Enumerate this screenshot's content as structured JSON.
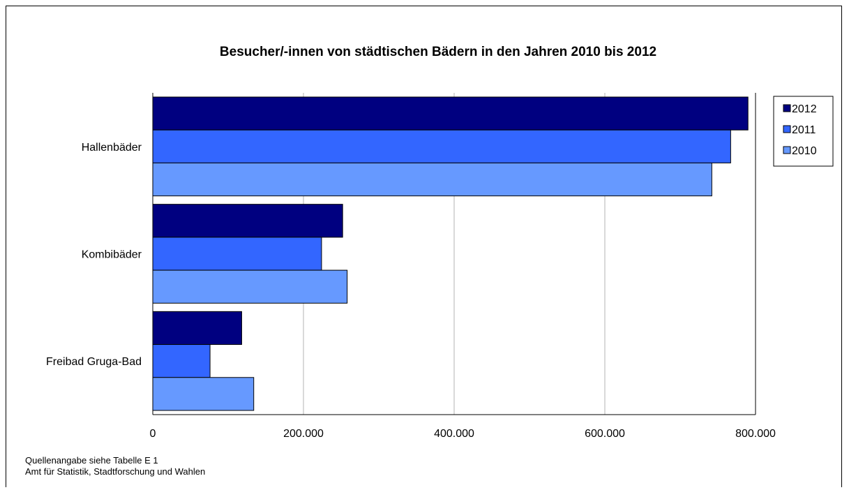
{
  "chart_data": {
    "type": "bar",
    "orientation": "horizontal",
    "title": "Besucher/-innen von städtischen Bädern in den Jahren 2010 bis 2012",
    "categories": [
      "Hallenbäder",
      "Kombibäder",
      "Freibad Gruga-Bad"
    ],
    "series": [
      {
        "name": "2012",
        "color": "#000080",
        "values": [
          790000,
          252000,
          118000
        ]
      },
      {
        "name": "2011",
        "color": "#3366FF",
        "values": [
          767000,
          224000,
          76000
        ]
      },
      {
        "name": "2010",
        "color": "#6699FF",
        "values": [
          742000,
          258000,
          134000
        ]
      }
    ],
    "xlim": [
      0,
      800000
    ],
    "xticks": [
      0,
      200000,
      400000,
      600000,
      800000
    ],
    "xtick_labels": [
      "0",
      "200.000",
      "400.000",
      "600.000",
      "800.000"
    ],
    "xlabel": "",
    "ylabel": "",
    "grid": true,
    "legend_position": "top-right"
  },
  "footnotes": {
    "source": "Quellenangabe siehe Tabelle E 1",
    "office": "Amt für Statistik, Stadtforschung und Wahlen"
  }
}
